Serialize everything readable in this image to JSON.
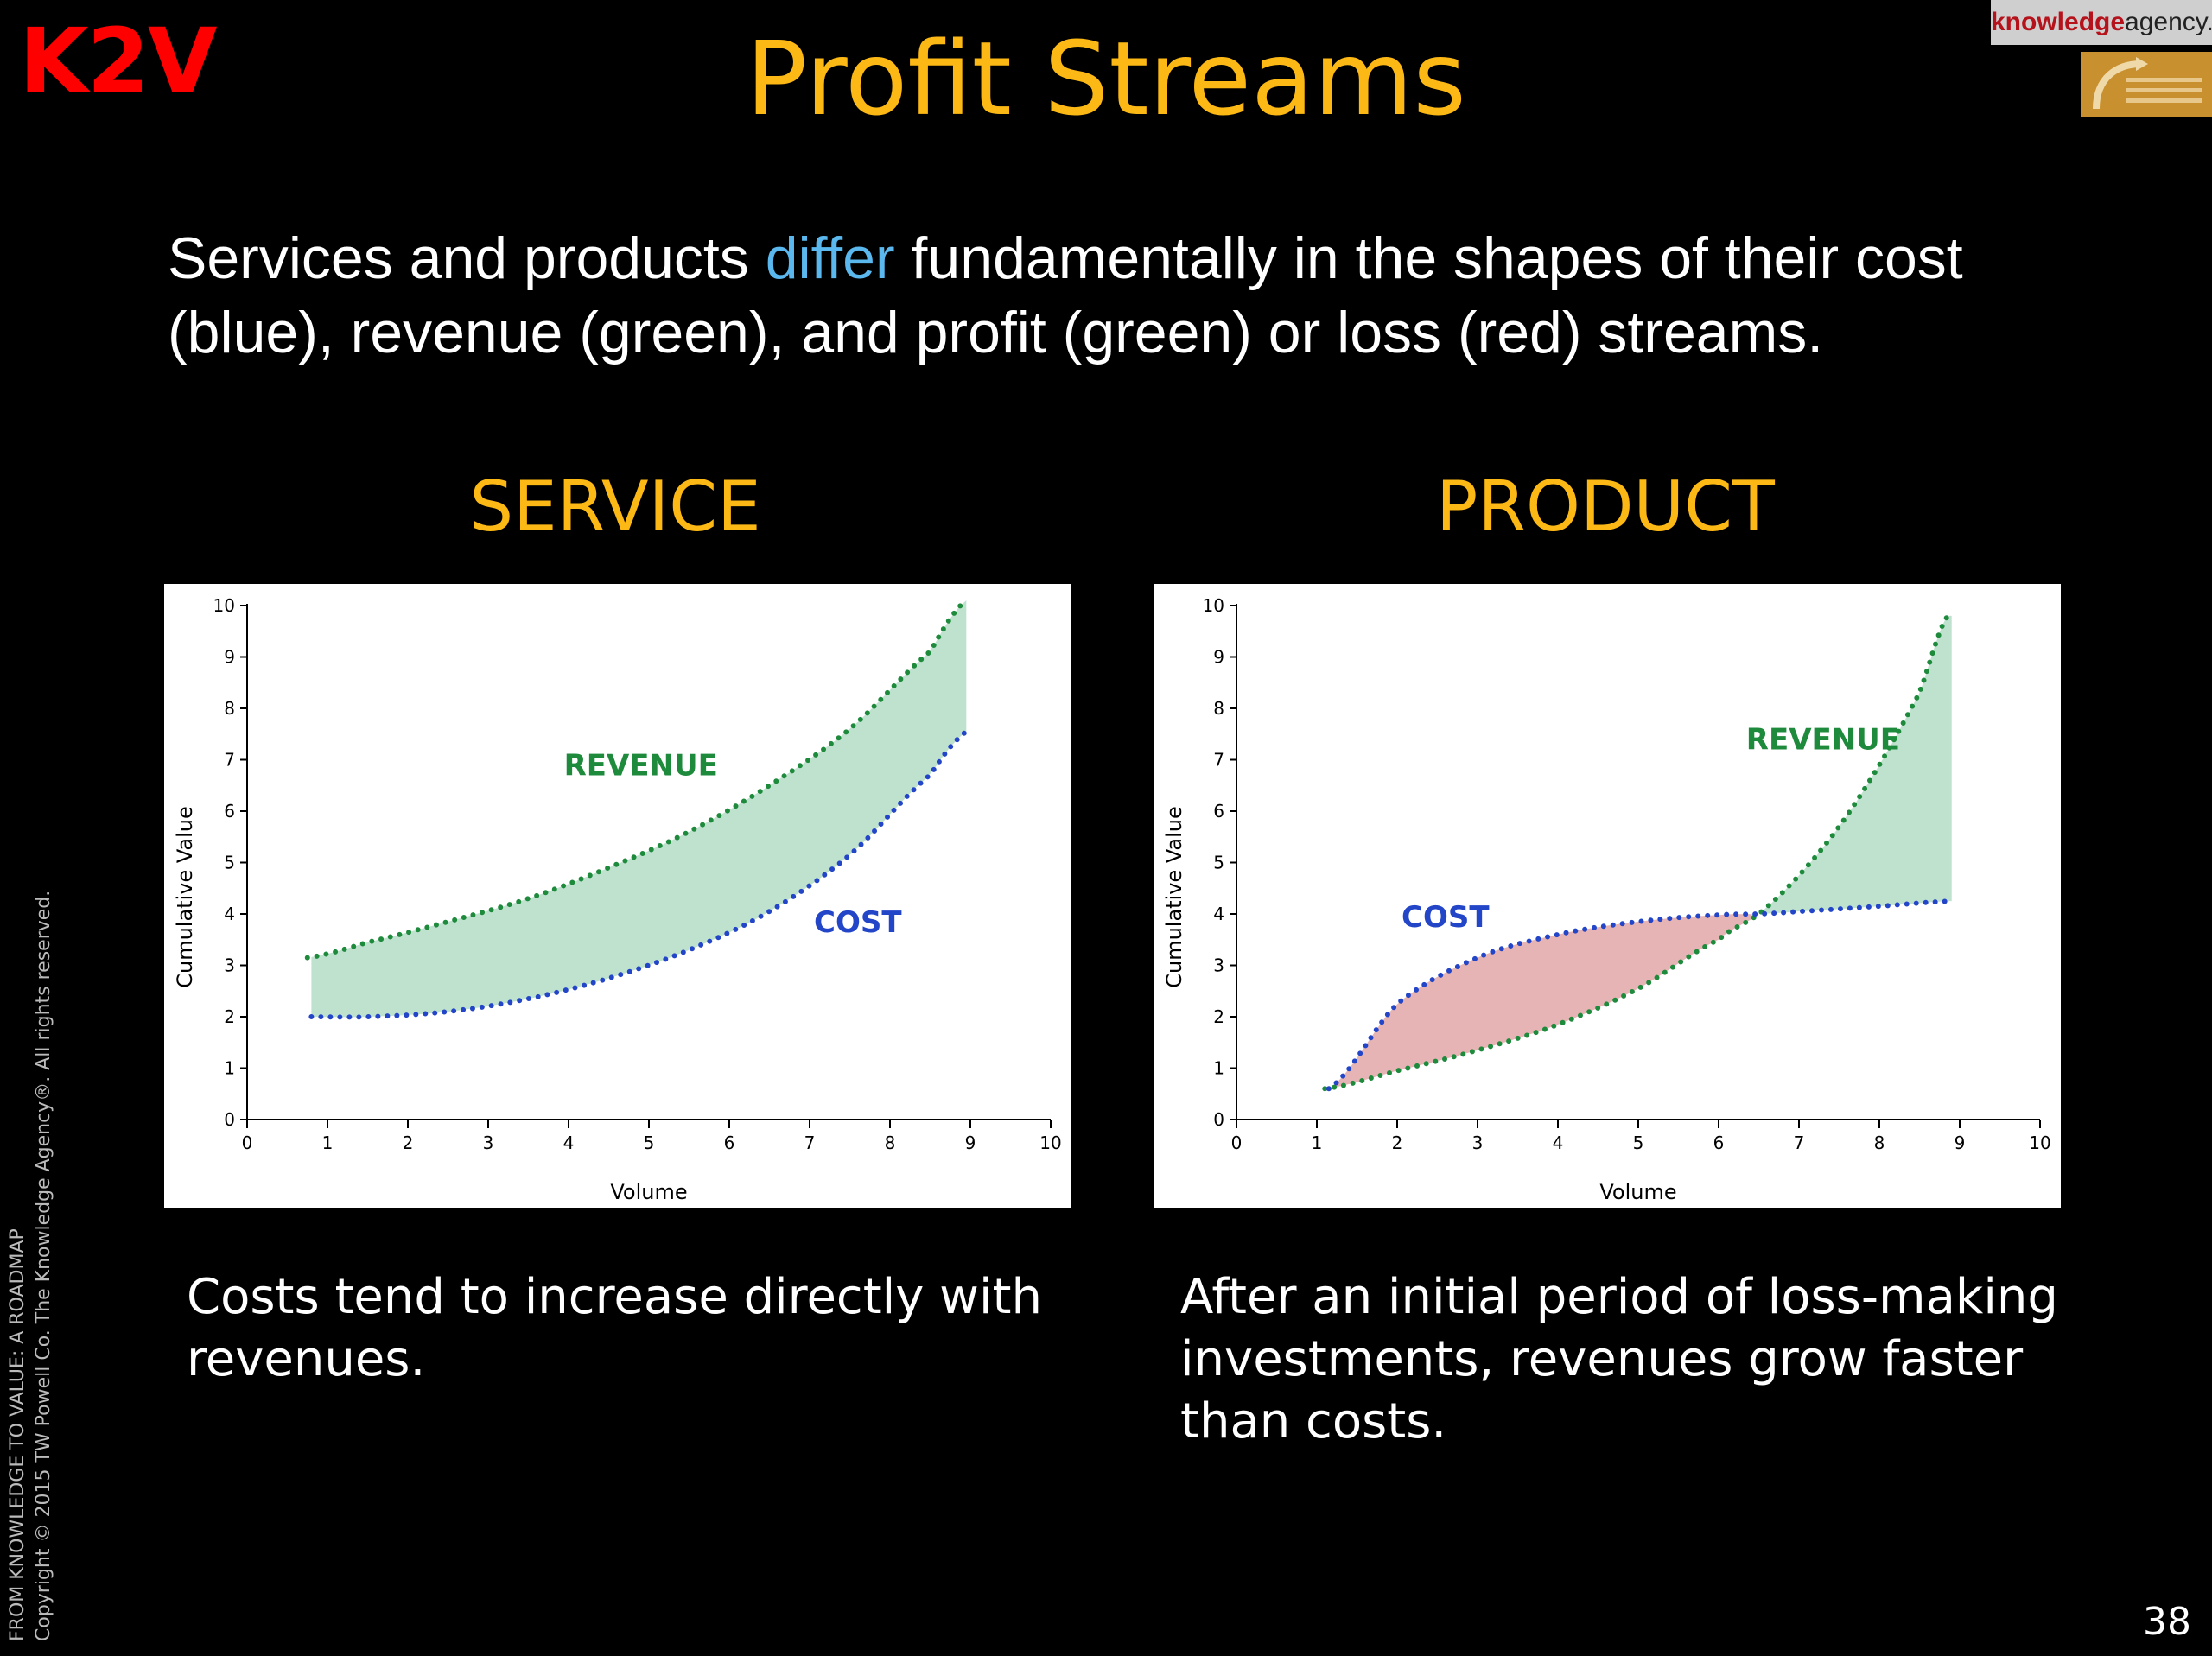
{
  "logo": "K2V",
  "title": "Profit Streams",
  "brand": {
    "part1": "knowledge",
    "part2": "agency."
  },
  "intro": {
    "before": "Services and products ",
    "highlight": "differ",
    "after": " fundamentally in the shapes of their cost (blue), revenue (green), and profit (green) or loss (red) streams."
  },
  "colors": {
    "title": "#fcb814",
    "highlight": "#5ab8ee",
    "revenue": "#1e8a3c",
    "cost": "#2345c8",
    "profit_fill": "#bfe2cf",
    "loss_fill": "#e6b4b4"
  },
  "service": {
    "heading": "SERVICE",
    "caption": "Costs tend to increase directly with revenues."
  },
  "product": {
    "heading": "PRODUCT",
    "caption": "After an initial period of loss-making investments, revenues grow faster than costs."
  },
  "chart_data": [
    {
      "type": "area",
      "title": "",
      "xlabel": "Volume",
      "ylabel": "Cumulative Value",
      "xlim": [
        0,
        10
      ],
      "ylim": [
        0,
        10
      ],
      "xticks": [
        0,
        1,
        2,
        3,
        4,
        5,
        6,
        7,
        8,
        9,
        10
      ],
      "yticks": [
        0,
        1,
        2,
        3,
        4,
        5,
        6,
        7,
        8,
        9,
        10
      ],
      "series": [
        {
          "name": "REVENUE",
          "color": "#1e8a3c",
          "style": "dotted",
          "x": [
            0.75,
            1.5,
            2.5,
            3.5,
            4.5,
            5.5,
            6.5,
            7.5,
            8.5,
            8.95
          ],
          "y": [
            3.15,
            3.45,
            3.85,
            4.3,
            4.9,
            5.6,
            6.5,
            7.6,
            9.1,
            10.1
          ]
        },
        {
          "name": "COST",
          "color": "#2345c8",
          "style": "dotted",
          "x": [
            0.8,
            1.5,
            2.5,
            3.5,
            4.5,
            5.5,
            6.5,
            7.5,
            8.5,
            9.0
          ],
          "y": [
            2.0,
            2.0,
            2.1,
            2.35,
            2.75,
            3.3,
            4.05,
            5.15,
            6.7,
            7.6
          ]
        }
      ],
      "fill_between": {
        "upper": "REVENUE",
        "lower": "COST",
        "color": "#bfe2cf"
      },
      "labels": [
        {
          "text": "REVENUE",
          "x": 4.9,
          "y": 6.7,
          "color": "#1e8a3c"
        },
        {
          "text": "COST",
          "x": 7.6,
          "y": 3.65,
          "color": "#2345c8"
        }
      ]
    },
    {
      "type": "area",
      "title": "",
      "xlabel": "Volume",
      "ylabel": "Cumulative Value",
      "xlim": [
        0,
        10
      ],
      "ylim": [
        0,
        10
      ],
      "xticks": [
        0,
        1,
        2,
        3,
        4,
        5,
        6,
        7,
        8,
        9,
        10
      ],
      "yticks": [
        0,
        1,
        2,
        3,
        4,
        5,
        6,
        7,
        8,
        9,
        10
      ],
      "series": [
        {
          "name": "REVENUE",
          "color": "#1e8a3c",
          "style": "dotted",
          "x": [
            1.1,
            2,
            3,
            4,
            5,
            6,
            6.5,
            7,
            7.5,
            8,
            8.5,
            8.85
          ],
          "y": [
            0.6,
            0.95,
            1.35,
            1.85,
            2.55,
            3.5,
            4.0,
            4.75,
            5.7,
            6.9,
            8.3,
            9.8
          ]
        },
        {
          "name": "COST",
          "color": "#2345c8",
          "style": "dotted",
          "x": [
            1.15,
            2,
            3,
            4,
            5,
            6,
            6.5,
            7,
            8,
            8.9
          ],
          "y": [
            0.6,
            2.25,
            3.15,
            3.6,
            3.85,
            3.98,
            4.0,
            4.05,
            4.15,
            4.25
          ]
        }
      ],
      "fill_regions": [
        {
          "type": "loss",
          "x_range": [
            1.1,
            6.4
          ],
          "color": "#e6b4b4"
        },
        {
          "type": "profit",
          "x_range": [
            6.4,
            8.9
          ],
          "color": "#bfe2cf"
        }
      ],
      "labels": [
        {
          "text": "REVENUE",
          "x": 7.3,
          "y": 7.2,
          "color": "#1e8a3c"
        },
        {
          "text": "COST",
          "x": 2.6,
          "y": 3.75,
          "color": "#2345c8"
        }
      ]
    }
  ],
  "footer": {
    "line1": "FROM KNOWLEDGE TO VALUE:  A ROADMAP",
    "line2": "Copyright © 2015 TW Powell Co.  The Knowledge Agency®.  All rights reserved.",
    "page": "38"
  }
}
